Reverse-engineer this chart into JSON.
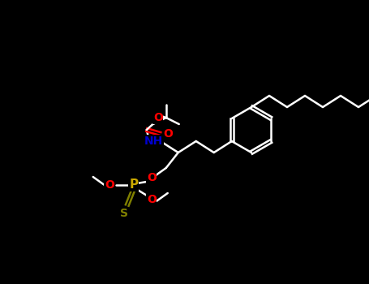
{
  "bg_color": "#000000",
  "line_color": "#ffffff",
  "atom_colors": {
    "O": "#ff0000",
    "N": "#0000cd",
    "S": "#808000",
    "P": "#ccaa00",
    "C": "#ffffff"
  },
  "figsize": [
    4.55,
    3.5
  ],
  "dpi": 100,
  "lw": 1.8,
  "fs": 9
}
